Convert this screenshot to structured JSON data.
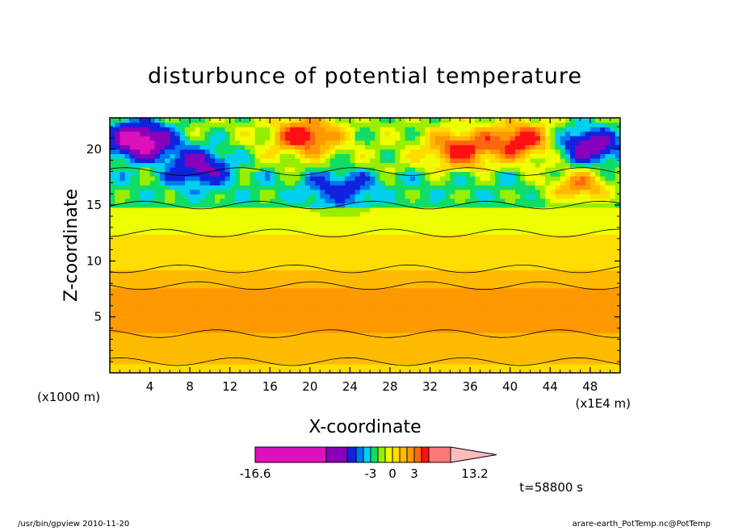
{
  "chart_data": {
    "type": "heatmap",
    "title": "disturbunce of potential temperature",
    "xlabel": "X-coordinate",
    "ylabel": "Z-coordinate",
    "x_unit_left": "(x1000 m)",
    "x_unit_right": "(x1E4 m)",
    "xlim": [
      0,
      51
    ],
    "ylim": [
      0,
      22.8
    ],
    "xticks": [
      4,
      8,
      12,
      16,
      20,
      24,
      28,
      32,
      36,
      40,
      44,
      48
    ],
    "yticks": [
      5,
      10,
      15,
      20
    ],
    "time_label": "t=58800 s",
    "colorbar": {
      "min_label": "-16.6",
      "max_label": "13.2",
      "tick_labels": [
        "-3",
        "0",
        "3"
      ],
      "levels": [
        -16.6,
        -9.5,
        -7,
        -5,
        -4,
        -3,
        -2,
        -1,
        0,
        1,
        2,
        3,
        4,
        6,
        13.2
      ],
      "colors": [
        "#dd11bb",
        "#8800bb",
        "#1122dd",
        "#0077ee",
        "#00d0ee",
        "#11dd66",
        "#99ee00",
        "#eeff00",
        "#ffdd00",
        "#ffbb00",
        "#ff9900",
        "#ff6611",
        "#ff1111",
        "#ff7777",
        "#ffbbbb"
      ]
    },
    "field": {
      "background_band_values": [
        {
          "z": [
            0,
            1.0
          ],
          "value": 0.5
        },
        {
          "z": [
            1.0,
            3.5
          ],
          "value": 1.5
        },
        {
          "z": [
            3.5,
            7.8
          ],
          "value": 2.5
        },
        {
          "z": [
            7.8,
            9.3
          ],
          "value": 1.5
        },
        {
          "z": [
            9.3,
            12.5
          ],
          "value": 0.5
        },
        {
          "z": [
            12.5,
            15
          ],
          "value": -0.5
        },
        {
          "z": [
            15,
            18
          ],
          "value": -2.5
        },
        {
          "z": [
            18,
            22.8
          ],
          "value": -1.5
        }
      ],
      "notable_features": [
        {
          "x": 3,
          "z": 20.8,
          "value": -12
        },
        {
          "x": 9,
          "z": 18.5,
          "value": -8
        },
        {
          "x": 23,
          "z": 16.5,
          "value": -6
        },
        {
          "x": 48,
          "z": 20.3,
          "value": -9
        },
        {
          "x": 19.5,
          "z": 21.2,
          "value": 5
        },
        {
          "x": 35,
          "z": 20,
          "value": 4.5
        },
        {
          "x": 41,
          "z": 20.8,
          "value": 5
        },
        {
          "x": 47,
          "z": 16.8,
          "value": 2.5
        },
        {
          "x": 22,
          "z": 5,
          "value": 2.5
        }
      ]
    }
  },
  "footer": {
    "left": "/usr/bin/gpview   2010-11-20",
    "right": "arare-earth_PotTemp.nc@PotTemp"
  }
}
